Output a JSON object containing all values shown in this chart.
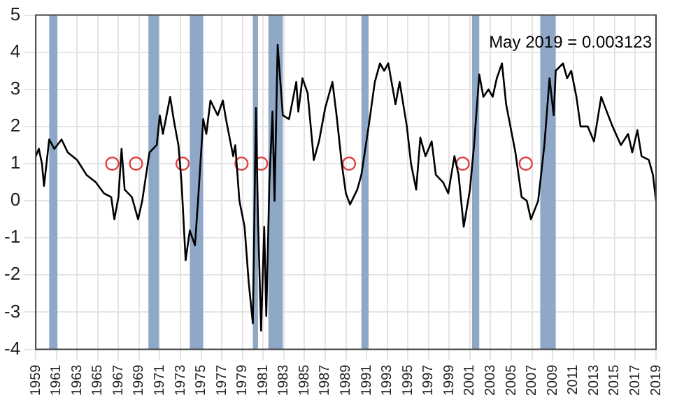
{
  "chart_data": {
    "type": "line",
    "xlim": [
      1959,
      2019
    ],
    "ylim": [
      -4,
      5
    ],
    "xticks": [
      1959,
      1961,
      1963,
      1965,
      1967,
      1969,
      1971,
      1973,
      1975,
      1977,
      1979,
      1981,
      1983,
      1985,
      1987,
      1989,
      1991,
      1993,
      1995,
      1997,
      1999,
      2001,
      2003,
      2005,
      2007,
      2009,
      2011,
      2013,
      2015,
      2017,
      2019
    ],
    "yticks": [
      -4,
      -3,
      -2,
      -1,
      0,
      1,
      2,
      3,
      4,
      5
    ],
    "grid": true,
    "annotations": [
      "May 2019 = 0.003123"
    ],
    "bands": [
      {
        "axis": "x",
        "from": 1960.3,
        "to": 1961.1,
        "color": "#8fa8c8"
      },
      {
        "axis": "x",
        "from": 1969.9,
        "to": 1970.9,
        "color": "#8fa8c8"
      },
      {
        "axis": "x",
        "from": 1973.9,
        "to": 1975.2,
        "color": "#8fa8c8"
      },
      {
        "axis": "x",
        "from": 1980.0,
        "to": 1980.5,
        "color": "#8fa8c8"
      },
      {
        "axis": "x",
        "from": 1981.5,
        "to": 1982.9,
        "color": "#8fa8c8"
      },
      {
        "axis": "x",
        "from": 1990.5,
        "to": 1991.2,
        "color": "#8fa8c8"
      },
      {
        "axis": "x",
        "from": 2001.2,
        "to": 2001.9,
        "color": "#8fa8c8"
      },
      {
        "axis": "x",
        "from": 2007.8,
        "to": 2009.3,
        "color": "#8fa8c8"
      }
    ],
    "series": [
      {
        "color": "#000000",
        "line_style": "solid",
        "x": [
          1959.0,
          1959.3,
          1959.6,
          1959.8,
          1960.3,
          1960.8,
          1961.5,
          1962.1,
          1963.0,
          1963.9,
          1964.8,
          1965.6,
          1966.3,
          1966.6,
          1967.0,
          1967.3,
          1967.6,
          1968.3,
          1968.9,
          1969.3,
          1970.0,
          1970.7,
          1971.0,
          1971.3,
          1972.0,
          1972.4,
          1972.8,
          1973.1,
          1973.5,
          1973.9,
          1974.4,
          1974.7,
          1975.2,
          1975.5,
          1975.9,
          1976.6,
          1977.1,
          1977.4,
          1978.1,
          1978.3,
          1978.7,
          1979.2,
          1979.6,
          1980.0,
          1980.3,
          1980.5,
          1980.8,
          1981.1,
          1981.3,
          1981.6,
          1981.9,
          1982.1,
          1982.4,
          1982.9,
          1983.5,
          1984.2,
          1984.4,
          1984.8,
          1985.3,
          1985.9,
          1986.4,
          1987.0,
          1987.7,
          1988.1,
          1988.6,
          1989.0,
          1989.4,
          1990.1,
          1990.5,
          1991.2,
          1991.8,
          1992.3,
          1992.7,
          1993.1,
          1993.8,
          1994.2,
          1994.9,
          1995.3,
          1995.8,
          1996.2,
          1996.7,
          1997.3,
          1997.7,
          1998.4,
          1998.9,
          1999.5,
          1999.9,
          2000.4,
          2001.0,
          2001.4,
          2001.9,
          2002.3,
          2002.8,
          2003.2,
          2003.6,
          2004.1,
          2004.5,
          2005.4,
          2006.0,
          2006.5,
          2006.9,
          2007.6,
          2008.2,
          2008.7,
          2009.1,
          2009.3,
          2010.0,
          2010.4,
          2010.8,
          2011.3,
          2011.7,
          2012.4,
          2013.0,
          2013.7,
          2014.1,
          2014.8,
          2015.6,
          2016.3,
          2016.7,
          2017.2,
          2017.6,
          2018.3,
          2018.7,
          2019.0
        ],
        "values": [
          1.2,
          1.4,
          1.0,
          0.4,
          1.65,
          1.4,
          1.65,
          1.3,
          1.1,
          0.7,
          0.5,
          0.2,
          0.1,
          -0.5,
          0.1,
          1.4,
          0.3,
          0.1,
          -0.5,
          0.0,
          1.3,
          1.5,
          2.3,
          1.8,
          2.8,
          2.1,
          1.5,
          0.5,
          -1.6,
          -0.8,
          -1.2,
          0.0,
          2.2,
          1.8,
          2.7,
          2.3,
          2.7,
          2.2,
          1.2,
          1.5,
          0.0,
          -0.7,
          -2.2,
          -3.3,
          2.5,
          -0.5,
          -3.5,
          -0.7,
          -3.1,
          0.5,
          2.4,
          0.0,
          4.2,
          2.3,
          2.2,
          3.2,
          2.4,
          3.3,
          2.9,
          1.1,
          1.6,
          2.5,
          3.2,
          2.3,
          1.0,
          0.2,
          -0.1,
          0.3,
          0.7,
          2.0,
          3.2,
          3.7,
          3.5,
          3.7,
          2.6,
          3.2,
          2.0,
          1.0,
          0.3,
          1.7,
          1.2,
          1.6,
          0.7,
          0.5,
          0.2,
          1.2,
          0.7,
          -0.7,
          0.3,
          1.5,
          3.4,
          2.8,
          3.0,
          2.8,
          3.3,
          3.7,
          2.6,
          1.3,
          0.1,
          0.0,
          -0.5,
          0.0,
          1.5,
          3.3,
          2.3,
          3.5,
          3.7,
          3.3,
          3.5,
          2.8,
          2.0,
          2.0,
          1.6,
          2.8,
          2.5,
          2.0,
          1.5,
          1.8,
          1.3,
          1.9,
          1.2,
          1.1,
          0.7,
          0.0
        ]
      },
      {
        "type": "scatter",
        "color": "#e04040",
        "marker": "circle",
        "x": [
          1966.4,
          1968.7,
          1973.2,
          1978.9,
          1980.8,
          1989.3,
          2000.3,
          2006.4
        ],
        "values": [
          1,
          1,
          1,
          1,
          1,
          1,
          1,
          1
        ]
      }
    ]
  }
}
